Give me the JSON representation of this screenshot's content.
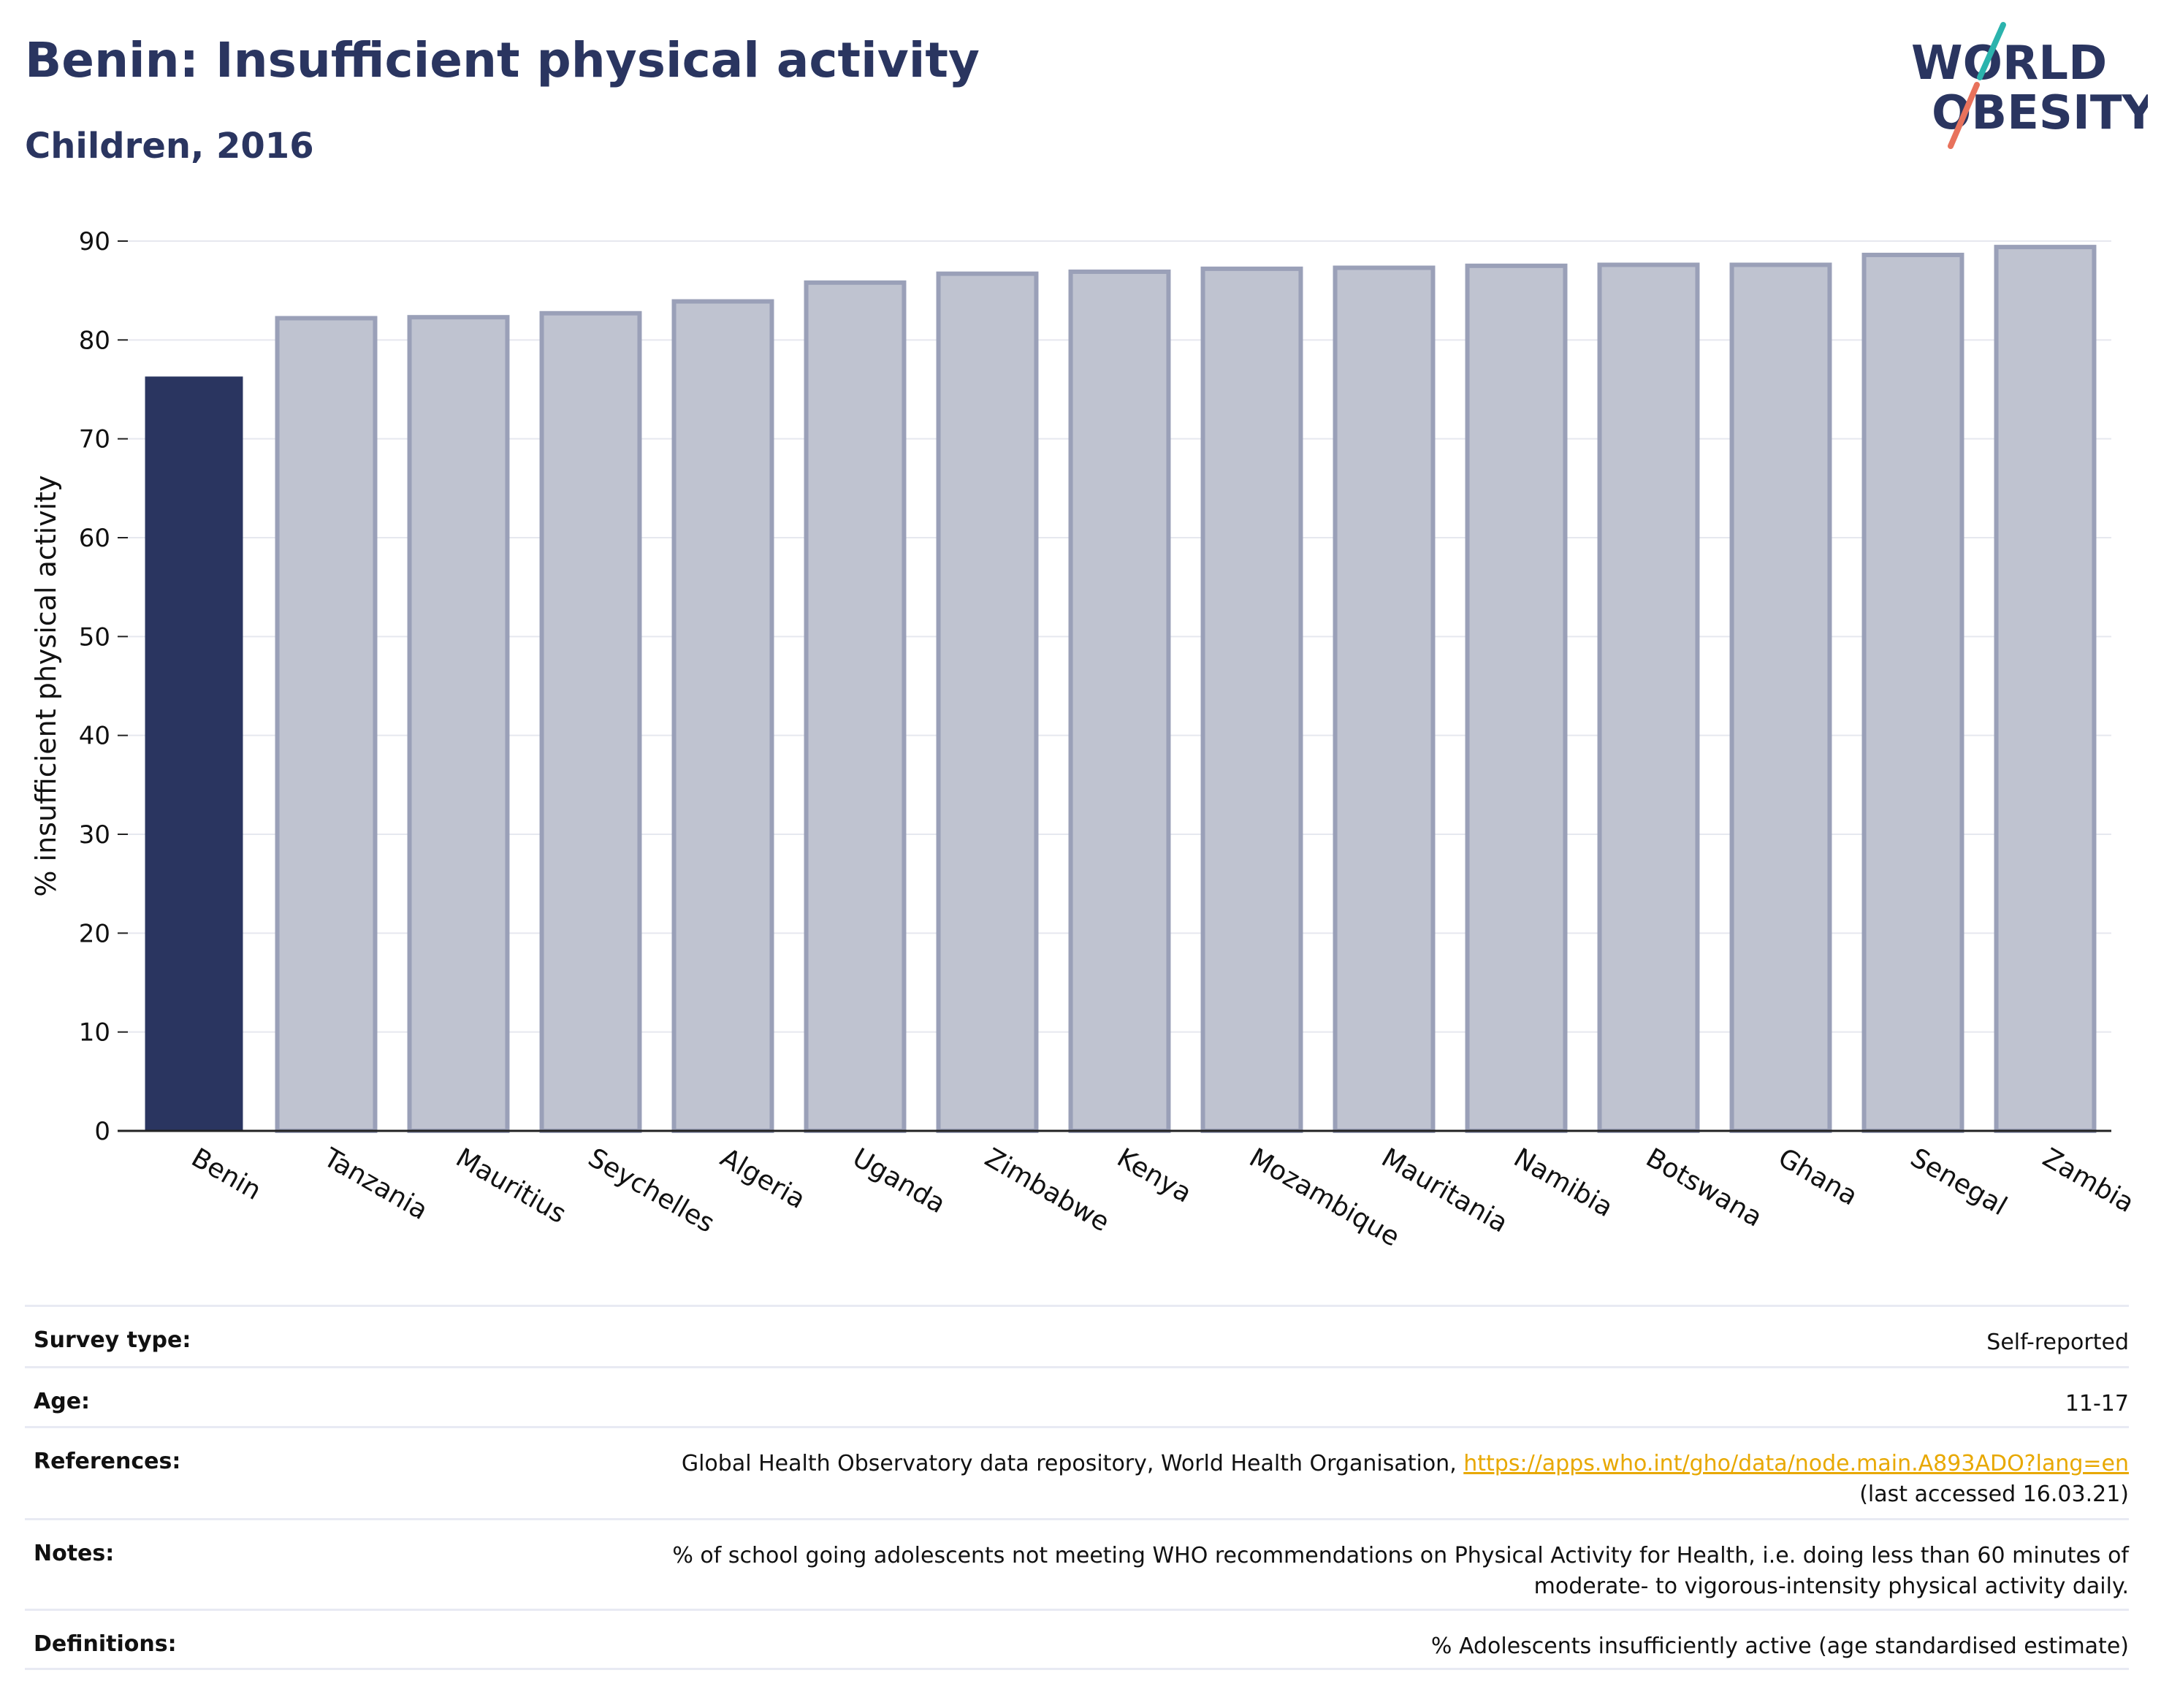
{
  "header": {
    "title": "Benin: Insufficient physical activity",
    "subtitle": "Children, 2016"
  },
  "logo": {
    "line1": "WORLD",
    "line2": "OBESITY",
    "slash_colors": [
      "#2bb3ad",
      "#e8725c"
    ]
  },
  "colors": {
    "highlight_bar": "#2a3560",
    "other_bar_fill": "#bfc3d0",
    "other_bar_stroke": "#9aa0b8",
    "title": "#2a3560",
    "link": "#e8a800"
  },
  "chart_data": {
    "type": "bar",
    "ylabel": "% insufficient physical activity",
    "xlabel": "",
    "ylim": [
      0,
      90
    ],
    "yticks": [
      0,
      10,
      20,
      30,
      40,
      50,
      60,
      70,
      80,
      90
    ],
    "grid": true,
    "highlight": "Benin",
    "categories": [
      "Benin",
      "Tanzania",
      "Mauritius",
      "Seychelles",
      "Algeria",
      "Uganda",
      "Zimbabwe",
      "Kenya",
      "Mozambique",
      "Mauritania",
      "Namibia",
      "Botswana",
      "Ghana",
      "Senegal",
      "Zambia"
    ],
    "values": [
      76.3,
      82.2,
      82.3,
      82.7,
      83.9,
      85.8,
      86.7,
      86.9,
      87.2,
      87.3,
      87.5,
      87.6,
      87.6,
      88.6,
      89.4
    ]
  },
  "meta": {
    "survey_type": {
      "label": "Survey type:",
      "value": "Self-reported"
    },
    "age": {
      "label": "Age:",
      "value": "11-17"
    },
    "references": {
      "label": "References:",
      "text": "Global Health Observatory data repository, World Health Organisation, ",
      "link": "https://apps.who.int/gho/data/node.main.A893ADO?lang=en",
      "suffix": "(last accessed 16.03.21)"
    },
    "notes": {
      "label": "Notes:",
      "line1": "% of school going adolescents not meeting WHO recommendations on Physical Activity for Health, i.e. doing less than 60 minutes of",
      "line2": "moderate- to vigorous-intensity physical activity daily."
    },
    "definitions": {
      "label": "Definitions:",
      "value": "% Adolescents insufficiently active (age standardised estimate)"
    }
  }
}
